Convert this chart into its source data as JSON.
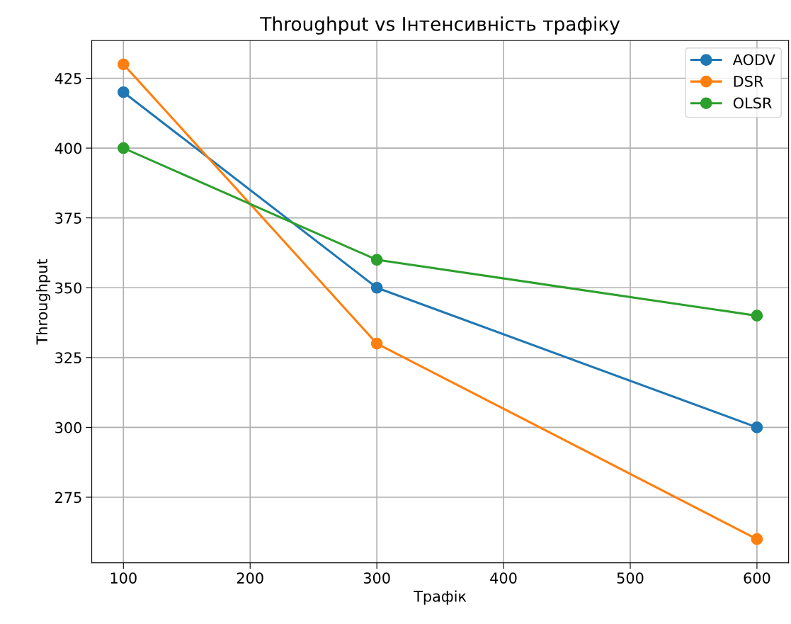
{
  "chart_data": {
    "type": "line",
    "title": "Throughput vs Інтенсивність трафіку",
    "xlabel": "Трафік",
    "ylabel": "Throughput",
    "x": [
      100,
      300,
      600
    ],
    "series": [
      {
        "name": "AODV",
        "color": "#1f77b4",
        "values": [
          420,
          350,
          300
        ]
      },
      {
        "name": "DSR",
        "color": "#ff7f0e",
        "values": [
          430,
          330,
          260
        ]
      },
      {
        "name": "OLSR",
        "color": "#2ca02c",
        "values": [
          400,
          360,
          340
        ]
      }
    ],
    "xlim": [
      75,
      625
    ],
    "xticks": [
      100,
      200,
      300,
      400,
      500,
      600
    ],
    "ylim": [
      251.5,
      438.5
    ],
    "yticks": [
      275,
      300,
      325,
      350,
      375,
      400,
      425
    ],
    "grid": true,
    "legend": "top right",
    "marker": "circle",
    "line_style": "solid"
  }
}
